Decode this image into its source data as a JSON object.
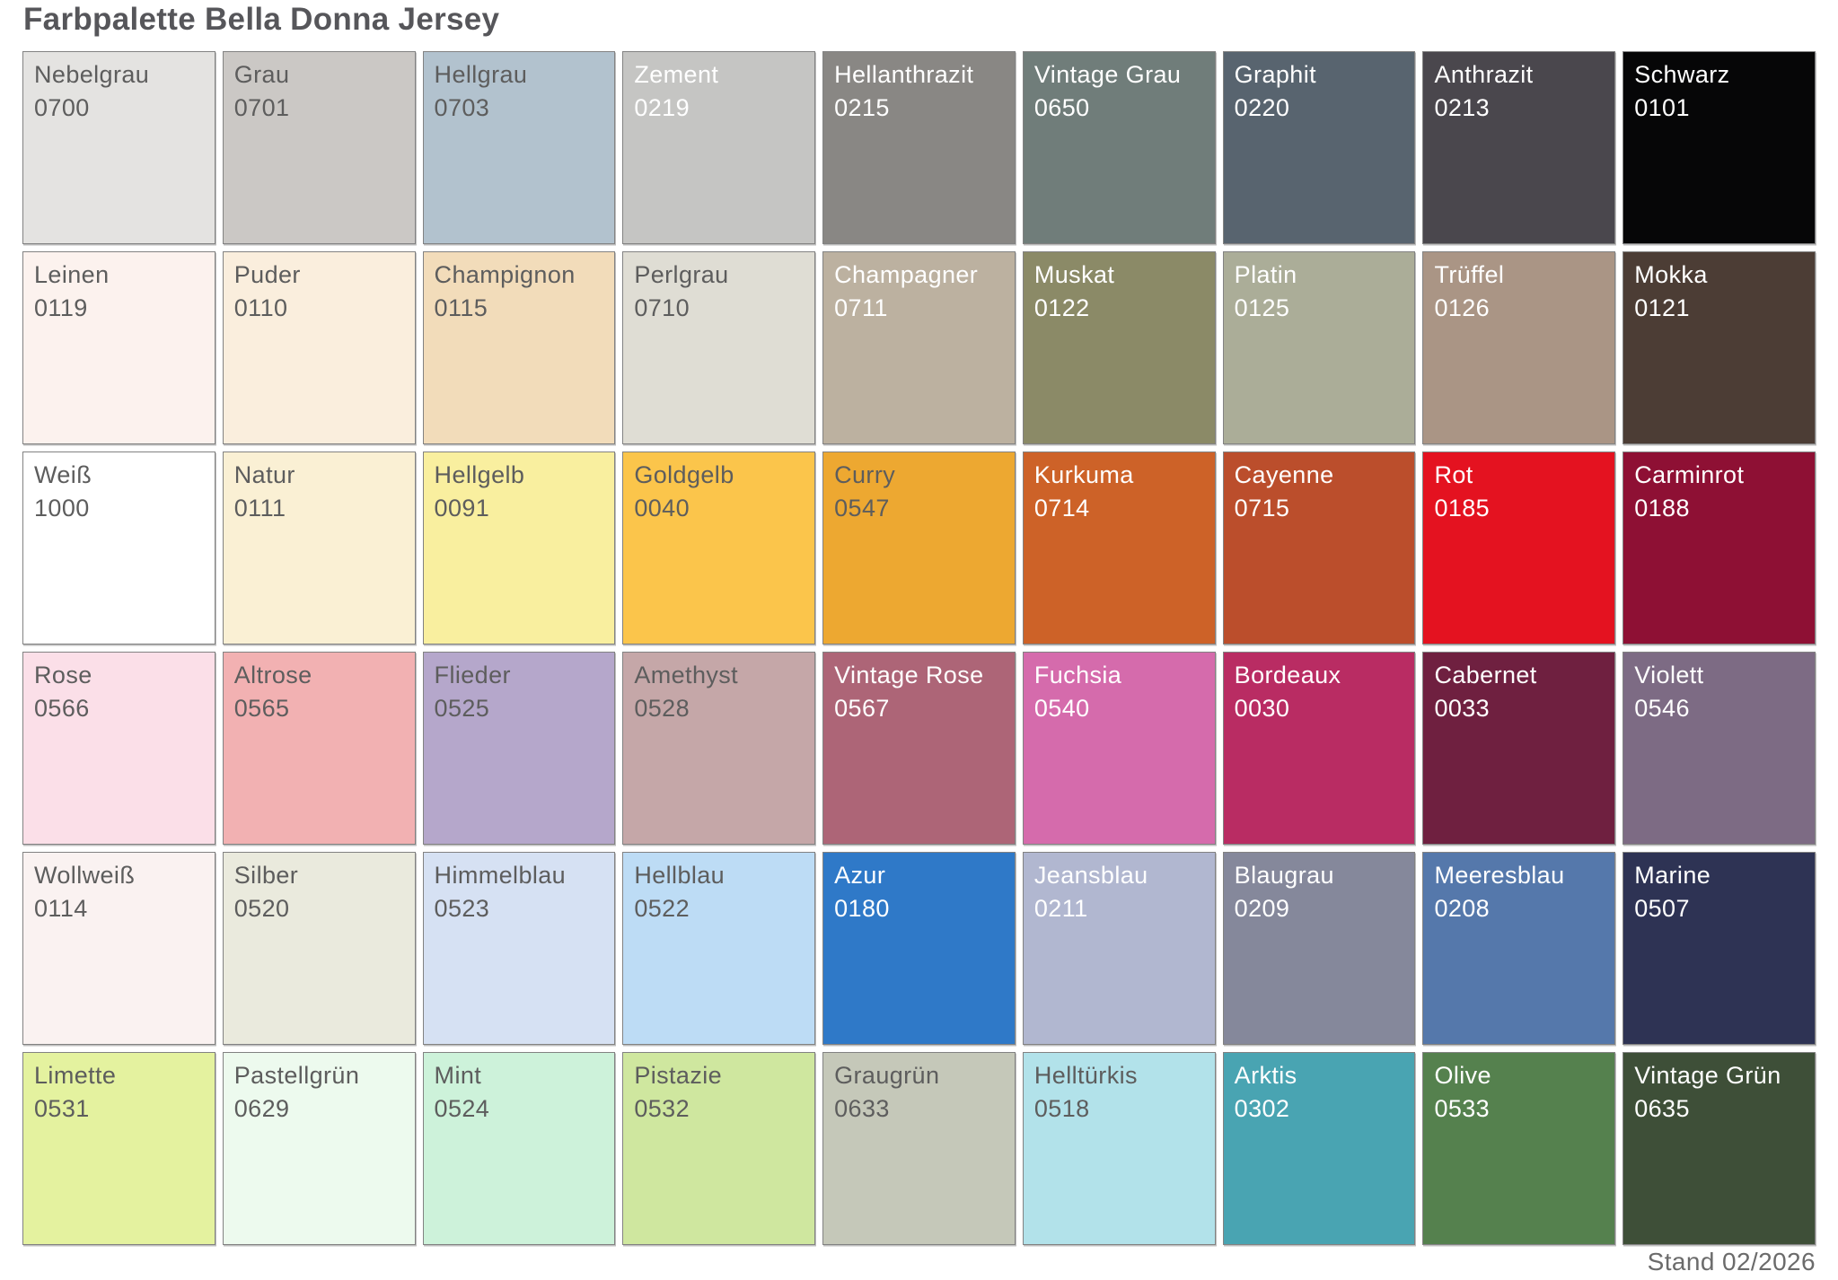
{
  "page": {
    "title": "Farbpalette Bella Donna Jersey",
    "footer": "Stand 02/2026"
  },
  "palette": {
    "columns": 9,
    "swatch_border_color": "#828282",
    "label_dark_color": "#5d5d5d",
    "label_light_color": "#ffffff",
    "rows": [
      {
        "cells": [
          {
            "name": "Nebelgrau",
            "code": "0700",
            "color": "#e4e3e1",
            "label": "dark"
          },
          {
            "name": "Grau",
            "code": "0701",
            "color": "#cbc8c5",
            "label": "dark"
          },
          {
            "name": "Hellgrau",
            "code": "0703",
            "color": "#b2c2ce",
            "label": "dark"
          },
          {
            "name": "Zement",
            "code": "0219",
            "color": "#c5c5c3",
            "label": "light"
          },
          {
            "name": "Hellanthrazit",
            "code": "0215",
            "color": "#898784",
            "label": "light"
          },
          {
            "name": "Vintage Grau",
            "code": "0650",
            "color": "#707d7a",
            "label": "light"
          },
          {
            "name": "Graphit",
            "code": "0220",
            "color": "#58646f",
            "label": "light"
          },
          {
            "name": "Anthrazit",
            "code": "0213",
            "color": "#4a474d",
            "label": "light"
          },
          {
            "name": "Schwarz",
            "code": "0101",
            "color": "#060607",
            "label": "light"
          }
        ]
      },
      {
        "cells": [
          {
            "name": "Leinen",
            "code": "0119",
            "color": "#fcf2ee",
            "label": "dark"
          },
          {
            "name": "Puder",
            "code": "0110",
            "color": "#faeedd",
            "label": "dark"
          },
          {
            "name": "Champignon",
            "code": "0115",
            "color": "#f2dcba",
            "label": "dark"
          },
          {
            "name": "Perlgrau",
            "code": "0710",
            "color": "#dfddd4",
            "label": "dark"
          },
          {
            "name": "Champagner",
            "code": "0711",
            "color": "#bcb1a0",
            "label": "light"
          },
          {
            "name": "Muskat",
            "code": "0122",
            "color": "#8b8a67",
            "label": "light"
          },
          {
            "name": "Platin",
            "code": "0125",
            "color": "#abad98",
            "label": "light"
          },
          {
            "name": "Trüffel",
            "code": "0126",
            "color": "#aa9585",
            "label": "light"
          },
          {
            "name": "Mokka",
            "code": "0121",
            "color": "#4c3d35",
            "label": "light"
          }
        ]
      },
      {
        "cells": [
          {
            "name": "Weiß",
            "code": "1000",
            "color": "#ffffff",
            "label": "dark"
          },
          {
            "name": "Natur",
            "code": "0111",
            "color": "#faf0d4",
            "label": "dark"
          },
          {
            "name": "Hellgelb",
            "code": "0091",
            "color": "#f9ef9f",
            "label": "dark"
          },
          {
            "name": "Goldgelb",
            "code": "0040",
            "color": "#fbc54b",
            "label": "dark"
          },
          {
            "name": "Curry",
            "code": "0547",
            "color": "#eda831",
            "label": "dark"
          },
          {
            "name": "Kurkuma",
            "code": "0714",
            "color": "#cd6228",
            "label": "light"
          },
          {
            "name": "Cayenne",
            "code": "0715",
            "color": "#bb4e2c",
            "label": "light"
          },
          {
            "name": "Rot",
            "code": "0185",
            "color": "#e41220",
            "label": "light"
          },
          {
            "name": "Carminrot",
            "code": "0188",
            "color": "#8e1034",
            "label": "light"
          }
        ]
      },
      {
        "cells": [
          {
            "name": "Rose",
            "code": "0566",
            "color": "#fbdfe8",
            "label": "dark"
          },
          {
            "name": "Altrose",
            "code": "0565",
            "color": "#f2b1b2",
            "label": "dark"
          },
          {
            "name": "Flieder",
            "code": "0525",
            "color": "#b5a7cb",
            "label": "dark"
          },
          {
            "name": "Amethyst",
            "code": "0528",
            "color": "#c5a7a8",
            "label": "dark"
          },
          {
            "name": "Vintage Rose",
            "code": "0567",
            "color": "#ad6577",
            "label": "light"
          },
          {
            "name": "Fuchsia",
            "code": "0540",
            "color": "#d56bac",
            "label": "light"
          },
          {
            "name": "Bordeaux",
            "code": "0030",
            "color": "#b92c63",
            "label": "light"
          },
          {
            "name": "Cabernet",
            "code": "0033",
            "color": "#6f2040",
            "label": "light"
          },
          {
            "name": "Violett",
            "code": "0546",
            "color": "#7d6b84",
            "label": "light"
          }
        ]
      },
      {
        "cells": [
          {
            "name": "Wollweiß",
            "code": "0114",
            "color": "#faf2f1",
            "label": "dark"
          },
          {
            "name": "Silber",
            "code": "0520",
            "color": "#eaeadd",
            "label": "dark"
          },
          {
            "name": "Himmelblau",
            "code": "0523",
            "color": "#d6e1f3",
            "label": "dark"
          },
          {
            "name": "Hellblau",
            "code": "0522",
            "color": "#bddcf5",
            "label": "dark"
          },
          {
            "name": "Azur",
            "code": "0180",
            "color": "#2f79c8",
            "label": "light"
          },
          {
            "name": "Jeansblau",
            "code": "0211",
            "color": "#b1b7d0",
            "label": "light"
          },
          {
            "name": "Blaugrau",
            "code": "0209",
            "color": "#85889b",
            "label": "light"
          },
          {
            "name": "Meeresblau",
            "code": "0208",
            "color": "#5578ab",
            "label": "light"
          },
          {
            "name": "Marine",
            "code": "0507",
            "color": "#2e3354",
            "label": "light"
          }
        ]
      },
      {
        "cells": [
          {
            "name": "Limette",
            "code": "0531",
            "color": "#e4f29f",
            "label": "dark"
          },
          {
            "name": "Pastellgrün",
            "code": "0629",
            "color": "#edfaee",
            "label": "dark"
          },
          {
            "name": "Mint",
            "code": "0524",
            "color": "#cdf2da",
            "label": "dark"
          },
          {
            "name": "Pistazie",
            "code": "0532",
            "color": "#cfe79f",
            "label": "dark"
          },
          {
            "name": "Graugrün",
            "code": "0633",
            "color": "#c5c8b9",
            "label": "dark"
          },
          {
            "name": "Helltürkis",
            "code": "0518",
            "color": "#b2e2ea",
            "label": "dark"
          },
          {
            "name": "Arktis",
            "code": "0302",
            "color": "#49a4b2",
            "label": "light"
          },
          {
            "name": "Olive",
            "code": "0533",
            "color": "#55814e",
            "label": "light"
          },
          {
            "name": "Vintage Grün",
            "code": "0635",
            "color": "#3e4f38",
            "label": "light"
          }
        ]
      }
    ]
  }
}
